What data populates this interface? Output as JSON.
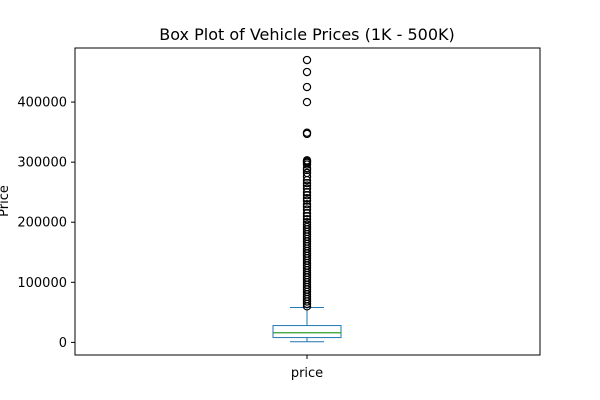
{
  "chart_data": {
    "type": "box",
    "title": "Box Plot of Vehicle Prices (1K - 500K)",
    "xlabel": "",
    "ylabel": "Price",
    "categories": [
      "price"
    ],
    "ylim": [
      -21000,
      490000
    ],
    "yticks": [
      0,
      100000,
      200000,
      300000,
      400000
    ],
    "ytick_labels": [
      "0",
      "100000",
      "200000",
      "300000",
      "400000"
    ],
    "grid": false,
    "box": {
      "whisker_low": 1000,
      "q1": 8000,
      "median": 16000,
      "q3": 28000,
      "whisker_high": 58000
    },
    "outliers": [
      470000,
      450000,
      425000,
      400000,
      349000,
      347000,
      303000,
      301000,
      299000,
      296000,
      290000,
      287000,
      282000,
      276000,
      270000,
      265000,
      261000,
      256000,
      250000,
      245000,
      240000,
      236000,
      230000,
      226000,
      221000,
      215000,
      210000,
      205000,
      200000,
      196000,
      192000,
      188000,
      184000,
      180000,
      176000,
      172000,
      168000,
      164000,
      160000,
      156000,
      152000,
      148000,
      144000,
      140000,
      136000,
      132000,
      128000,
      124000,
      120000,
      116000,
      112000,
      108000,
      104000,
      100000,
      96000,
      92000,
      88000,
      84000,
      80000,
      76000,
      72000,
      68000,
      64000,
      60000
    ],
    "colors": {
      "box": "#1f77b4",
      "median": "#2ca02c",
      "outlier": "#000000"
    }
  }
}
